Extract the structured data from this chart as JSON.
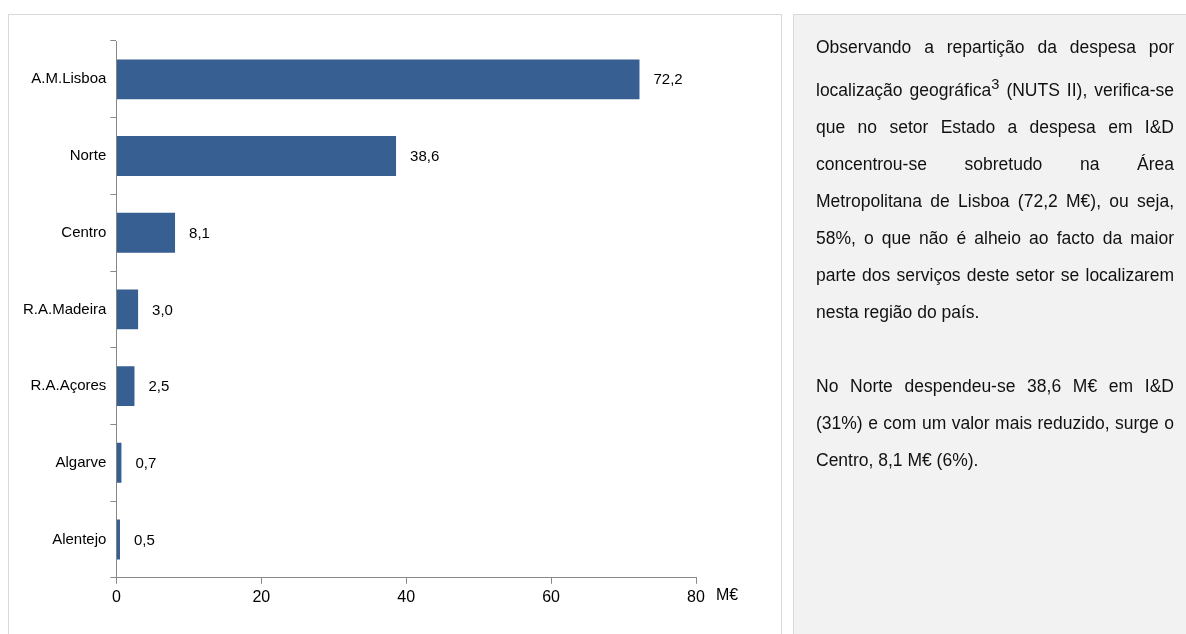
{
  "chart_data": [
    {
      "type": "bar",
      "orientation": "horizontal",
      "categories": [
        "A.M.Lisboa",
        "Norte",
        "Centro",
        "R.A.Madeira",
        "R.A.Açores",
        "Algarve",
        "Alentejo"
      ],
      "values": [
        72.2,
        38.6,
        8.1,
        3.0,
        2.5,
        0.7,
        0.5
      ],
      "color": "#375f91",
      "value_labels": [
        "72,2",
        "38,6",
        "8,1",
        "3,0",
        "2,5",
        "0,7",
        "0,5"
      ],
      "xlim": [
        0,
        80
      ],
      "xticks": [
        0,
        20,
        40,
        60,
        80
      ],
      "xlabel": "M€",
      "grid": false,
      "legend": false
    },
    {
      "type": "other",
      "annotations": [
        "Observando a repartição da despesa por localização geográfica$^{3}$ (NUTS II), verifica-se que no setor Estado a despesa em I&D concentrou-se sobretudo na Área Metropolitana de Lisboa (72,2 M€), ou seja, 58%, o que não é alheio ao facto da maior parte dos serviços deste setor se localizarem nesta região do país.",
        "No Norte despendeu-se 38,6 M€ em I&D (31%) e com um valor mais reduzido, surge o Centro, 8,1 M€ (6%)."
      ]
    }
  ]
}
